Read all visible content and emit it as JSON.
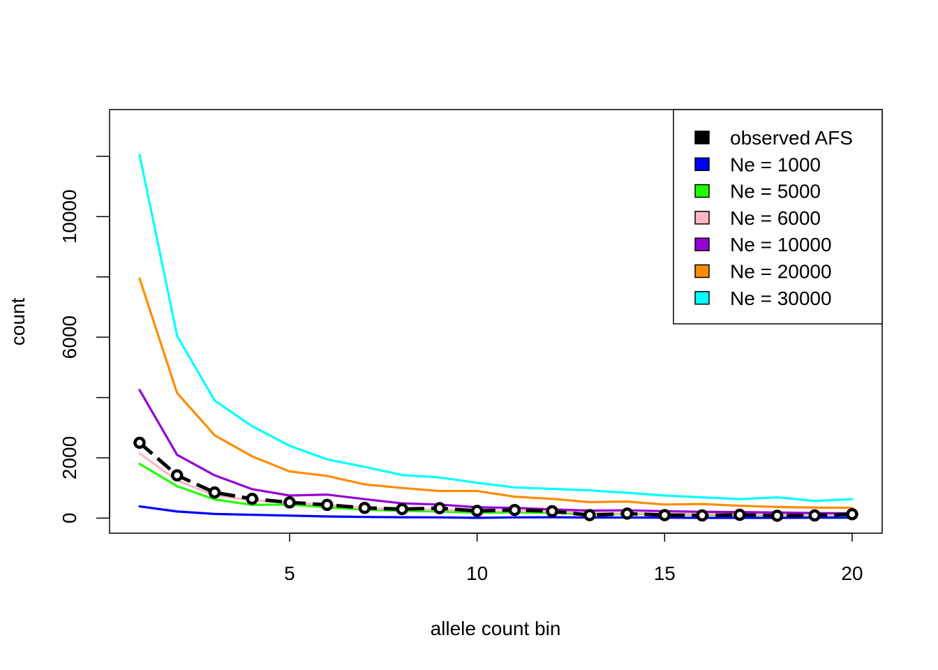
{
  "chart_data": {
    "type": "line",
    "title": "",
    "xlabel": "allele count bin",
    "ylabel": "count",
    "xlim": [
      0.2,
      20.8
    ],
    "ylim": [
      -500,
      13550
    ],
    "xticks": [
      5,
      10,
      15,
      20
    ],
    "xtick_labels": [
      "5",
      "10",
      "15",
      "20"
    ],
    "yticks": [
      0,
      2000,
      6000,
      10000
    ],
    "ytick_labels": [
      "0",
      "2000",
      "6000",
      "10000"
    ],
    "yticks_minor": [
      4000,
      8000,
      12000
    ],
    "grid": false,
    "legend_position": "top-right",
    "x": [
      1,
      2,
      3,
      4,
      5,
      6,
      7,
      8,
      9,
      10,
      11,
      12,
      13,
      14,
      15,
      16,
      17,
      18,
      19,
      20
    ],
    "series": [
      {
        "name": "Ne = 1000",
        "color": "#0000ff",
        "style": "solid",
        "values": [
          390,
          220,
          140,
          110,
          85,
          55,
          40,
          30,
          25,
          10,
          25,
          30,
          20,
          20,
          15,
          10,
          10,
          10,
          15,
          15
        ]
      },
      {
        "name": "Ne = 5000",
        "color": "#22ff00",
        "style": "solid",
        "values": [
          1800,
          1060,
          620,
          440,
          450,
          360,
          280,
          240,
          220,
          180,
          190,
          175,
          140,
          135,
          130,
          110,
          105,
          100,
          95,
          90
        ]
      },
      {
        "name": "Ne = 6000",
        "color": "#ffb6c1",
        "style": "solid",
        "values": [
          2150,
          1250,
          760,
          590,
          510,
          440,
          330,
          290,
          280,
          240,
          240,
          230,
          180,
          160,
          150,
          140,
          130,
          125,
          115,
          110
        ]
      },
      {
        "name": "Ne = 10000",
        "color": "#9400d3",
        "style": "solid",
        "values": [
          4250,
          2100,
          1420,
          960,
          750,
          780,
          630,
          490,
          450,
          360,
          340,
          290,
          250,
          260,
          230,
          210,
          200,
          185,
          170,
          160
        ]
      },
      {
        "name": "Ne = 20000",
        "color": "#ff8c00",
        "style": "solid",
        "values": [
          7950,
          4150,
          2750,
          2050,
          1550,
          1400,
          1120,
          1000,
          900,
          900,
          710,
          640,
          530,
          550,
          450,
          470,
          410,
          370,
          350,
          340
        ]
      },
      {
        "name": "Ne = 30000",
        "color": "#00ffff",
        "style": "solid",
        "values": [
          12050,
          6050,
          3900,
          3050,
          2400,
          1950,
          1700,
          1430,
          1350,
          1170,
          1020,
          970,
          920,
          840,
          750,
          690,
          630,
          690,
          570,
          630
        ]
      },
      {
        "name": "observed AFS",
        "color": "#000000",
        "style": "dashed-points",
        "values": [
          2500,
          1420,
          850,
          640,
          520,
          440,
          340,
          300,
          330,
          240,
          270,
          230,
          100,
          150,
          100,
          90,
          110,
          80,
          90,
          130
        ]
      }
    ],
    "legend": [
      {
        "label": "observed AFS",
        "color": "#000000"
      },
      {
        "label": "Ne = 1000",
        "color": "#0000ff"
      },
      {
        "label": "Ne = 5000",
        "color": "#22ff00"
      },
      {
        "label": "Ne = 6000",
        "color": "#ffb6c1"
      },
      {
        "label": "Ne = 10000",
        "color": "#9400d3"
      },
      {
        "label": "Ne = 20000",
        "color": "#ff8c00"
      },
      {
        "label": "Ne = 30000",
        "color": "#00ffff"
      }
    ]
  }
}
